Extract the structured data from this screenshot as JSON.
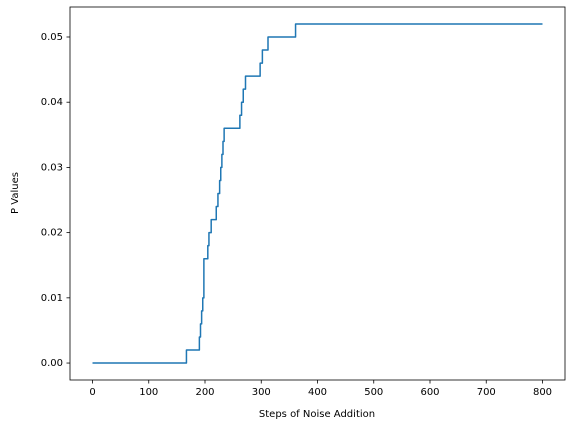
{
  "chart_data": {
    "type": "line",
    "xlabel": "Steps of Noise Addition",
    "ylabel": "P Values",
    "x": [
      0,
      167,
      167,
      190,
      190,
      192,
      192,
      194,
      194,
      196,
      196,
      198,
      198,
      205,
      205,
      207,
      207,
      211,
      211,
      220,
      220,
      223,
      223,
      226,
      226,
      228,
      228,
      230,
      230,
      232,
      232,
      234,
      234,
      262,
      262,
      265,
      265,
      268,
      268,
      272,
      272,
      298,
      298,
      302,
      302,
      312,
      312,
      361,
      361,
      800
    ],
    "values": [
      0,
      0,
      0.002,
      0.002,
      0.004,
      0.004,
      0.006,
      0.006,
      0.008,
      0.008,
      0.01,
      0.01,
      0.016,
      0.016,
      0.018,
      0.018,
      0.02,
      0.02,
      0.022,
      0.022,
      0.024,
      0.024,
      0.026,
      0.026,
      0.028,
      0.028,
      0.03,
      0.03,
      0.032,
      0.032,
      0.034,
      0.034,
      0.036,
      0.036,
      0.038,
      0.038,
      0.04,
      0.04,
      0.042,
      0.042,
      0.044,
      0.044,
      0.046,
      0.046,
      0.048,
      0.048,
      0.05,
      0.05,
      0.052,
      0.052
    ],
    "color": "#1f77b4",
    "xlim": [
      -40,
      840
    ],
    "xticks": [
      0,
      100,
      200,
      300,
      400,
      500,
      600,
      700,
      800
    ],
    "ylim": [
      -0.0026,
      0.0546
    ],
    "yticks": [
      {
        "value": 0,
        "label": "0.00"
      },
      {
        "value": 0.01,
        "label": "0.01"
      },
      {
        "value": 0.02,
        "label": "0.02"
      },
      {
        "value": 0.03,
        "label": "0.03"
      },
      {
        "value": 0.04,
        "label": "0.04"
      },
      {
        "value": 0.05,
        "label": "0.05"
      }
    ],
    "grid": false
  }
}
